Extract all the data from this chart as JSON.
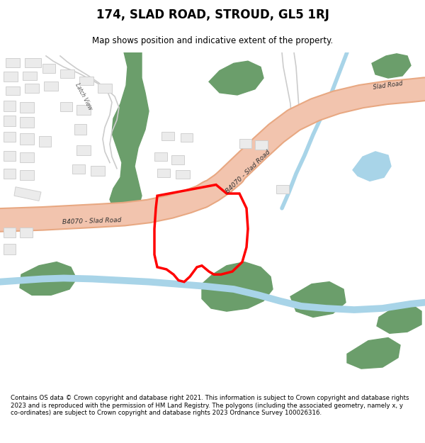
{
  "title": "174, SLAD ROAD, STROUD, GL5 1RJ",
  "subtitle": "Map shows position and indicative extent of the property.",
  "footer": "Contains OS data © Crown copyright and database right 2021. This information is subject to Crown copyright and database rights 2023 and is reproduced with the permission of HM Land Registry. The polygons (including the associated geometry, namely x, y co-ordinates) are subject to Crown copyright and database rights 2023 Ordnance Survey 100026316.",
  "bg_color": "#ffffff",
  "map_bg": "#ffffff",
  "road_color": "#f2c4ae",
  "road_outline": "#e8a882",
  "green_color": "#6b9e6b",
  "blue_color": "#a8d4e8",
  "building_color": "#ebebeb",
  "building_outline": "#d0d0d0",
  "plot_color": "#ff0000",
  "road_label_1": "B4070 - Slad Road",
  "road_label_2": "B4070 - Slad Road",
  "road_label_3": "Slad Road",
  "street_label": "Latch View"
}
